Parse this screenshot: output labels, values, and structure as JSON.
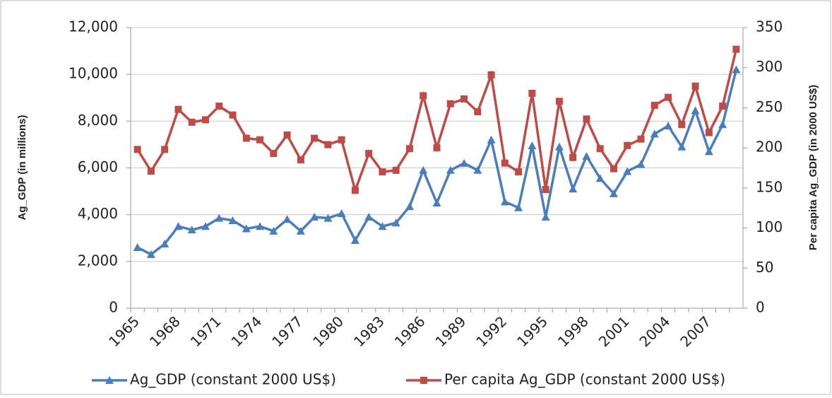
{
  "chart_data": {
    "type": "line",
    "y_label": "Ag_GDP (in millions)",
    "y2_label": "Per capita Ag_GDP (in 2000 US$)",
    "categories": [
      "1965",
      null,
      null,
      "1968",
      null,
      null,
      "1971",
      null,
      null,
      "1974",
      null,
      null,
      "1977",
      null,
      null,
      "1980",
      null,
      null,
      "1983",
      null,
      null,
      "1986",
      null,
      null,
      "1989",
      null,
      null,
      "1992",
      null,
      null,
      "1995",
      null,
      null,
      "1998",
      null,
      null,
      "2001",
      null,
      null,
      "2004",
      null,
      null,
      "2007",
      null,
      null
    ],
    "series": [
      {
        "name": "Ag_GDP (constant 2000 US$)",
        "color": "#4a7ebb",
        "marker": "triangle",
        "values": [
          2600,
          2300,
          2750,
          3500,
          3350,
          3500,
          3850,
          3750,
          3400,
          3500,
          3300,
          3800,
          3300,
          3900,
          3850,
          4050,
          2900,
          3900,
          3500,
          3650,
          4350,
          5900,
          4500,
          5900,
          6200,
          5900,
          7200,
          4550,
          4300,
          6950,
          3900,
          6900,
          5100,
          6500,
          5550,
          4900,
          5850,
          6150,
          7450,
          7800,
          6900,
          8450,
          6700,
          7850,
          10200
        ]
      },
      {
        "name": "Per capita Ag_GDP (constant 2000 US$)",
        "color": "#be4b48",
        "marker": "square",
        "axis": "y2",
        "values": [
          198,
          171,
          198,
          248,
          232,
          235,
          252,
          241,
          212,
          210,
          193,
          216,
          185,
          212,
          204,
          210,
          147,
          193,
          170,
          172,
          199,
          265,
          200,
          255,
          261,
          245,
          291,
          181,
          170,
          268,
          148,
          258,
          188,
          236,
          199,
          174,
          203,
          211,
          253,
          263,
          229,
          277,
          219,
          252,
          323
        ]
      }
    ],
    "ylim": [
      0,
      12000
    ],
    "yticks": [
      0,
      {
        "value": 2000,
        "label": "2,000"
      },
      {
        "value": 4000,
        "label": "4,000"
      },
      {
        "value": 6000,
        "label": "6,000"
      },
      {
        "value": 8000,
        "label": "8,000"
      },
      {
        "value": 10000,
        "label": "10,000"
      },
      {
        "value": 12000,
        "label": "12,000"
      }
    ],
    "y2lim": [
      0,
      350
    ],
    "y2ticks": [
      0,
      50,
      100,
      150,
      200,
      250,
      300,
      350
    ],
    "grid": true,
    "legend": "bottom"
  }
}
